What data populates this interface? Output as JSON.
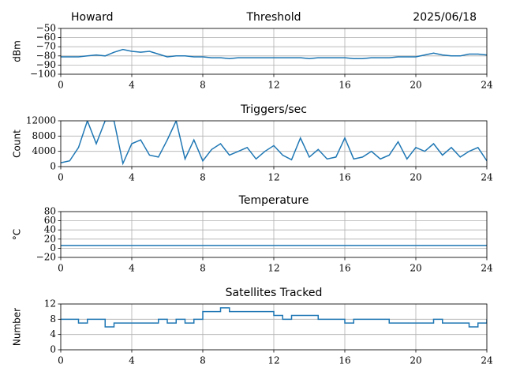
{
  "chart_data": [
    {
      "type": "line",
      "title": "Threshold",
      "annotations": [
        "Howard",
        "2025/06/18"
      ],
      "ylabel": "dBm",
      "color": "#1f77b4",
      "grid": true,
      "xlim": [
        0,
        24
      ],
      "xticks": [
        0,
        4,
        8,
        12,
        16,
        20,
        24
      ],
      "ylim": [
        -100,
        -50
      ],
      "yticks": [
        {
          "value": -50,
          "label": "−50"
        },
        {
          "value": -60,
          "label": "−60"
        },
        {
          "value": -70,
          "label": "−70"
        },
        {
          "value": -80,
          "label": "−80"
        },
        {
          "value": -90,
          "label": "−90"
        },
        {
          "value": -100,
          "label": "−100"
        }
      ],
      "x": [
        0,
        0.5,
        1,
        1.5,
        2,
        2.5,
        3,
        3.5,
        4,
        4.5,
        5,
        5.5,
        6,
        6.5,
        7,
        7.5,
        8,
        8.5,
        9,
        9.5,
        10,
        10.5,
        11,
        11.5,
        12,
        12.5,
        13,
        13.5,
        14,
        14.5,
        15,
        15.5,
        16,
        16.5,
        17,
        17.5,
        18,
        18.5,
        19,
        19.5,
        20,
        20.5,
        21,
        21.5,
        22,
        22.5,
        23,
        23.5,
        24
      ],
      "values": [
        -81,
        -81,
        -81,
        -80,
        -79,
        -80,
        -76,
        -73,
        -75,
        -76,
        -75,
        -78,
        -81,
        -80,
        -80,
        -81,
        -81,
        -82,
        -82,
        -83,
        -82,
        -82,
        -82,
        -82,
        -82,
        -82,
        -82,
        -82,
        -83,
        -82,
        -82,
        -82,
        -82,
        -83,
        -83,
        -82,
        -82,
        -82,
        -81,
        -81,
        -81,
        -79,
        -77,
        -79,
        -80,
        -80,
        -78,
        -78,
        -79
      ]
    },
    {
      "type": "line",
      "title": "Triggers/sec",
      "ylabel": "Count",
      "color": "#1f77b4",
      "grid": true,
      "xlim": [
        0,
        24
      ],
      "xticks": [
        0,
        4,
        8,
        12,
        16,
        20,
        24
      ],
      "ylim": [
        0,
        12000
      ],
      "yticks": [
        0,
        4000,
        8000,
        12000
      ],
      "x": [
        0,
        0.5,
        1,
        1.5,
        2,
        2.5,
        3,
        3.5,
        4,
        4.5,
        5,
        5.5,
        6,
        6.5,
        7,
        7.5,
        8,
        8.5,
        9,
        9.5,
        10,
        10.5,
        11,
        11.5,
        12,
        12.5,
        13,
        13.5,
        14,
        14.5,
        15,
        15.5,
        16,
        16.5,
        17,
        17.5,
        18,
        18.5,
        19,
        19.5,
        20,
        20.5,
        21,
        21.5,
        22,
        22.5,
        23,
        23.5,
        24
      ],
      "values": [
        1000,
        1500,
        5000,
        12000,
        6000,
        12000,
        12000,
        800,
        6000,
        7000,
        3000,
        2500,
        7000,
        12000,
        2000,
        7000,
        1500,
        4500,
        6000,
        3000,
        4000,
        5000,
        2000,
        4000,
        5500,
        3000,
        1800,
        7500,
        2500,
        4500,
        2000,
        2500,
        7500,
        2000,
        2500,
        4000,
        2000,
        3000,
        6500,
        2000,
        5000,
        4000,
        6000,
        3000,
        5000,
        2500,
        4000,
        5000,
        1500
      ]
    },
    {
      "type": "line",
      "title": "Temperature",
      "ylabel": "°C",
      "color": "#1f77b4",
      "grid": true,
      "xlim": [
        0,
        24
      ],
      "xticks": [
        0,
        4,
        8,
        12,
        16,
        20,
        24
      ],
      "ylim": [
        -20,
        80
      ],
      "yticks": [
        {
          "value": -20,
          "label": "−20"
        },
        0,
        20,
        40,
        60,
        80
      ],
      "x": [
        0,
        24
      ],
      "values": [
        6,
        6
      ]
    },
    {
      "type": "line",
      "title": "Satellites Tracked",
      "ylabel": "Number",
      "color": "#1f77b4",
      "grid": true,
      "drawstyle": "steps-post",
      "xlim": [
        0,
        24
      ],
      "xticks": [
        0,
        4,
        8,
        12,
        16,
        20,
        24
      ],
      "ylim": [
        0,
        12
      ],
      "yticks": [
        0,
        4,
        8,
        12
      ],
      "x": [
        0,
        0.5,
        1,
        1.5,
        2,
        2.5,
        3,
        3.5,
        4,
        4.5,
        5,
        5.5,
        6,
        6.5,
        7,
        7.5,
        8,
        8.5,
        9,
        9.5,
        10,
        10.5,
        11,
        11.5,
        12,
        12.5,
        13,
        13.5,
        14,
        14.5,
        15,
        15.5,
        16,
        16.5,
        17,
        17.5,
        18,
        18.5,
        19,
        19.5,
        20,
        20.5,
        21,
        21.5,
        22,
        22.5,
        23,
        23.5,
        24
      ],
      "values": [
        8,
        8,
        7,
        8,
        8,
        6,
        7,
        7,
        7,
        7,
        7,
        8,
        7,
        8,
        7,
        8,
        10,
        10,
        11,
        10,
        10,
        10,
        10,
        10,
        9,
        8,
        9,
        9,
        9,
        8,
        8,
        8,
        7,
        8,
        8,
        8,
        8,
        7,
        7,
        7,
        7,
        7,
        8,
        7,
        7,
        7,
        6,
        7,
        8
      ]
    }
  ]
}
